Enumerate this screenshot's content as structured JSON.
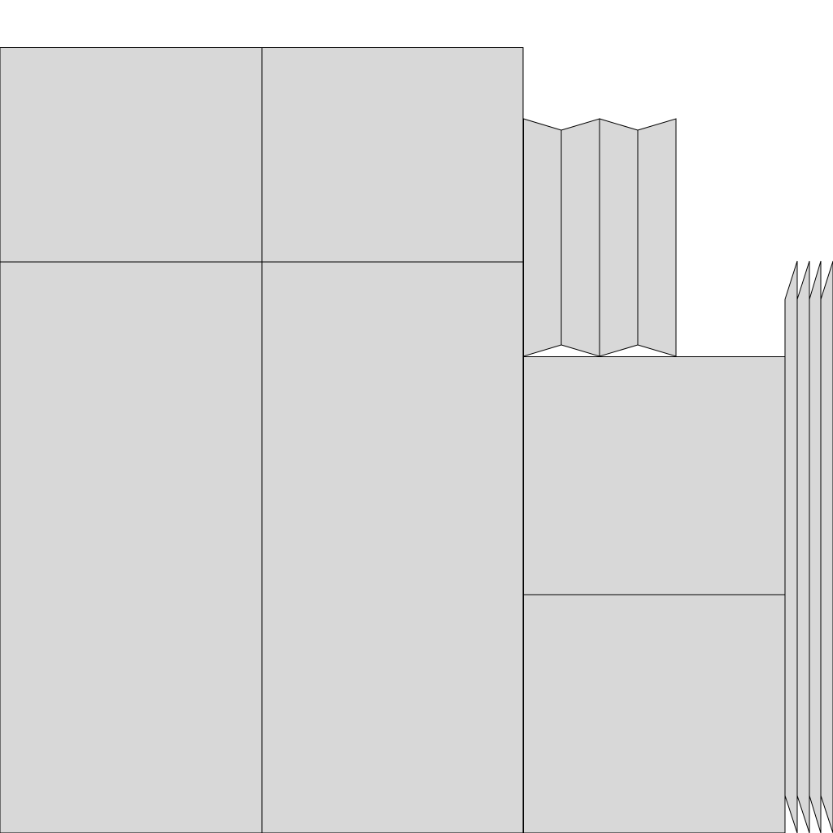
{
  "diagram": {
    "background_color": "#ffffff",
    "panel_fill_color": "#d8d8d8",
    "panel_stroke_color": "#000000",
    "groups": [
      {
        "name": "flat-sheet-grid",
        "panel_count": 4
      },
      {
        "name": "folded-pleat-strip",
        "panel_count": 4
      },
      {
        "name": "flat-sheet-pair",
        "panel_count": 2
      },
      {
        "name": "skewed-edge-strips",
        "panel_count": 4
      }
    ]
  }
}
